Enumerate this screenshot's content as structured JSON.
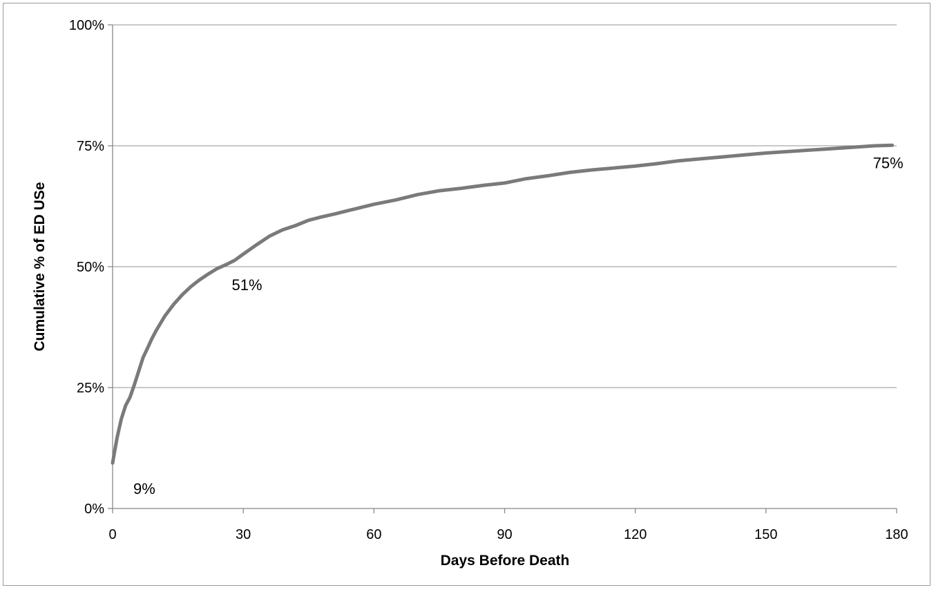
{
  "chart_data": {
    "type": "line",
    "title": "",
    "xlabel": "Days Before Death",
    "ylabel": "Cumulative % of ED USe",
    "xlim": [
      0,
      180
    ],
    "ylim": [
      0,
      100
    ],
    "x_ticks": [
      0,
      30,
      60,
      90,
      120,
      150,
      180
    ],
    "x_tick_labels": [
      "0",
      "30",
      "60",
      "90",
      "120",
      "150",
      "180"
    ],
    "y_ticks": [
      0,
      25,
      50,
      75,
      100
    ],
    "y_tick_labels": [
      "0%",
      "25%",
      "50%",
      "75%",
      "100%"
    ],
    "grid": "horizontal",
    "legend": "none",
    "series": [
      {
        "color": "#7a7a7a",
        "x": [
          0,
          1,
          2,
          3,
          4,
          5,
          6,
          7,
          8,
          9,
          10,
          12,
          14,
          16,
          18,
          20,
          22,
          24,
          26,
          28,
          30,
          33,
          36,
          39,
          42,
          45,
          48,
          51,
          55,
          60,
          65,
          70,
          75,
          80,
          85,
          90,
          95,
          100,
          105,
          110,
          115,
          120,
          125,
          130,
          135,
          140,
          145,
          150,
          155,
          160,
          165,
          170,
          175,
          179
        ],
        "y": [
          9.4,
          14.5,
          18.5,
          21.3,
          23.0,
          25.6,
          28.4,
          31.2,
          33.1,
          35.1,
          36.8,
          39.8,
          42.2,
          44.2,
          45.9,
          47.3,
          48.5,
          49.6,
          50.4,
          51.3,
          52.6,
          54.5,
          56.3,
          57.6,
          58.5,
          59.6,
          60.3,
          60.9,
          61.8,
          62.9,
          63.8,
          64.9,
          65.7,
          66.2,
          66.8,
          67.3,
          68.2,
          68.8,
          69.5,
          70.0,
          70.4,
          70.8,
          71.3,
          71.9,
          72.3,
          72.7,
          73.1,
          73.5,
          73.8,
          74.1,
          74.4,
          74.7,
          75.0,
          75.1
        ]
      }
    ],
    "annotations": [
      {
        "x": 0,
        "y": 9.4,
        "text": "9%"
      },
      {
        "x": 28,
        "y": 51.3,
        "text": "51%"
      },
      {
        "x": 179,
        "y": 75.1,
        "text": "75%"
      }
    ]
  }
}
